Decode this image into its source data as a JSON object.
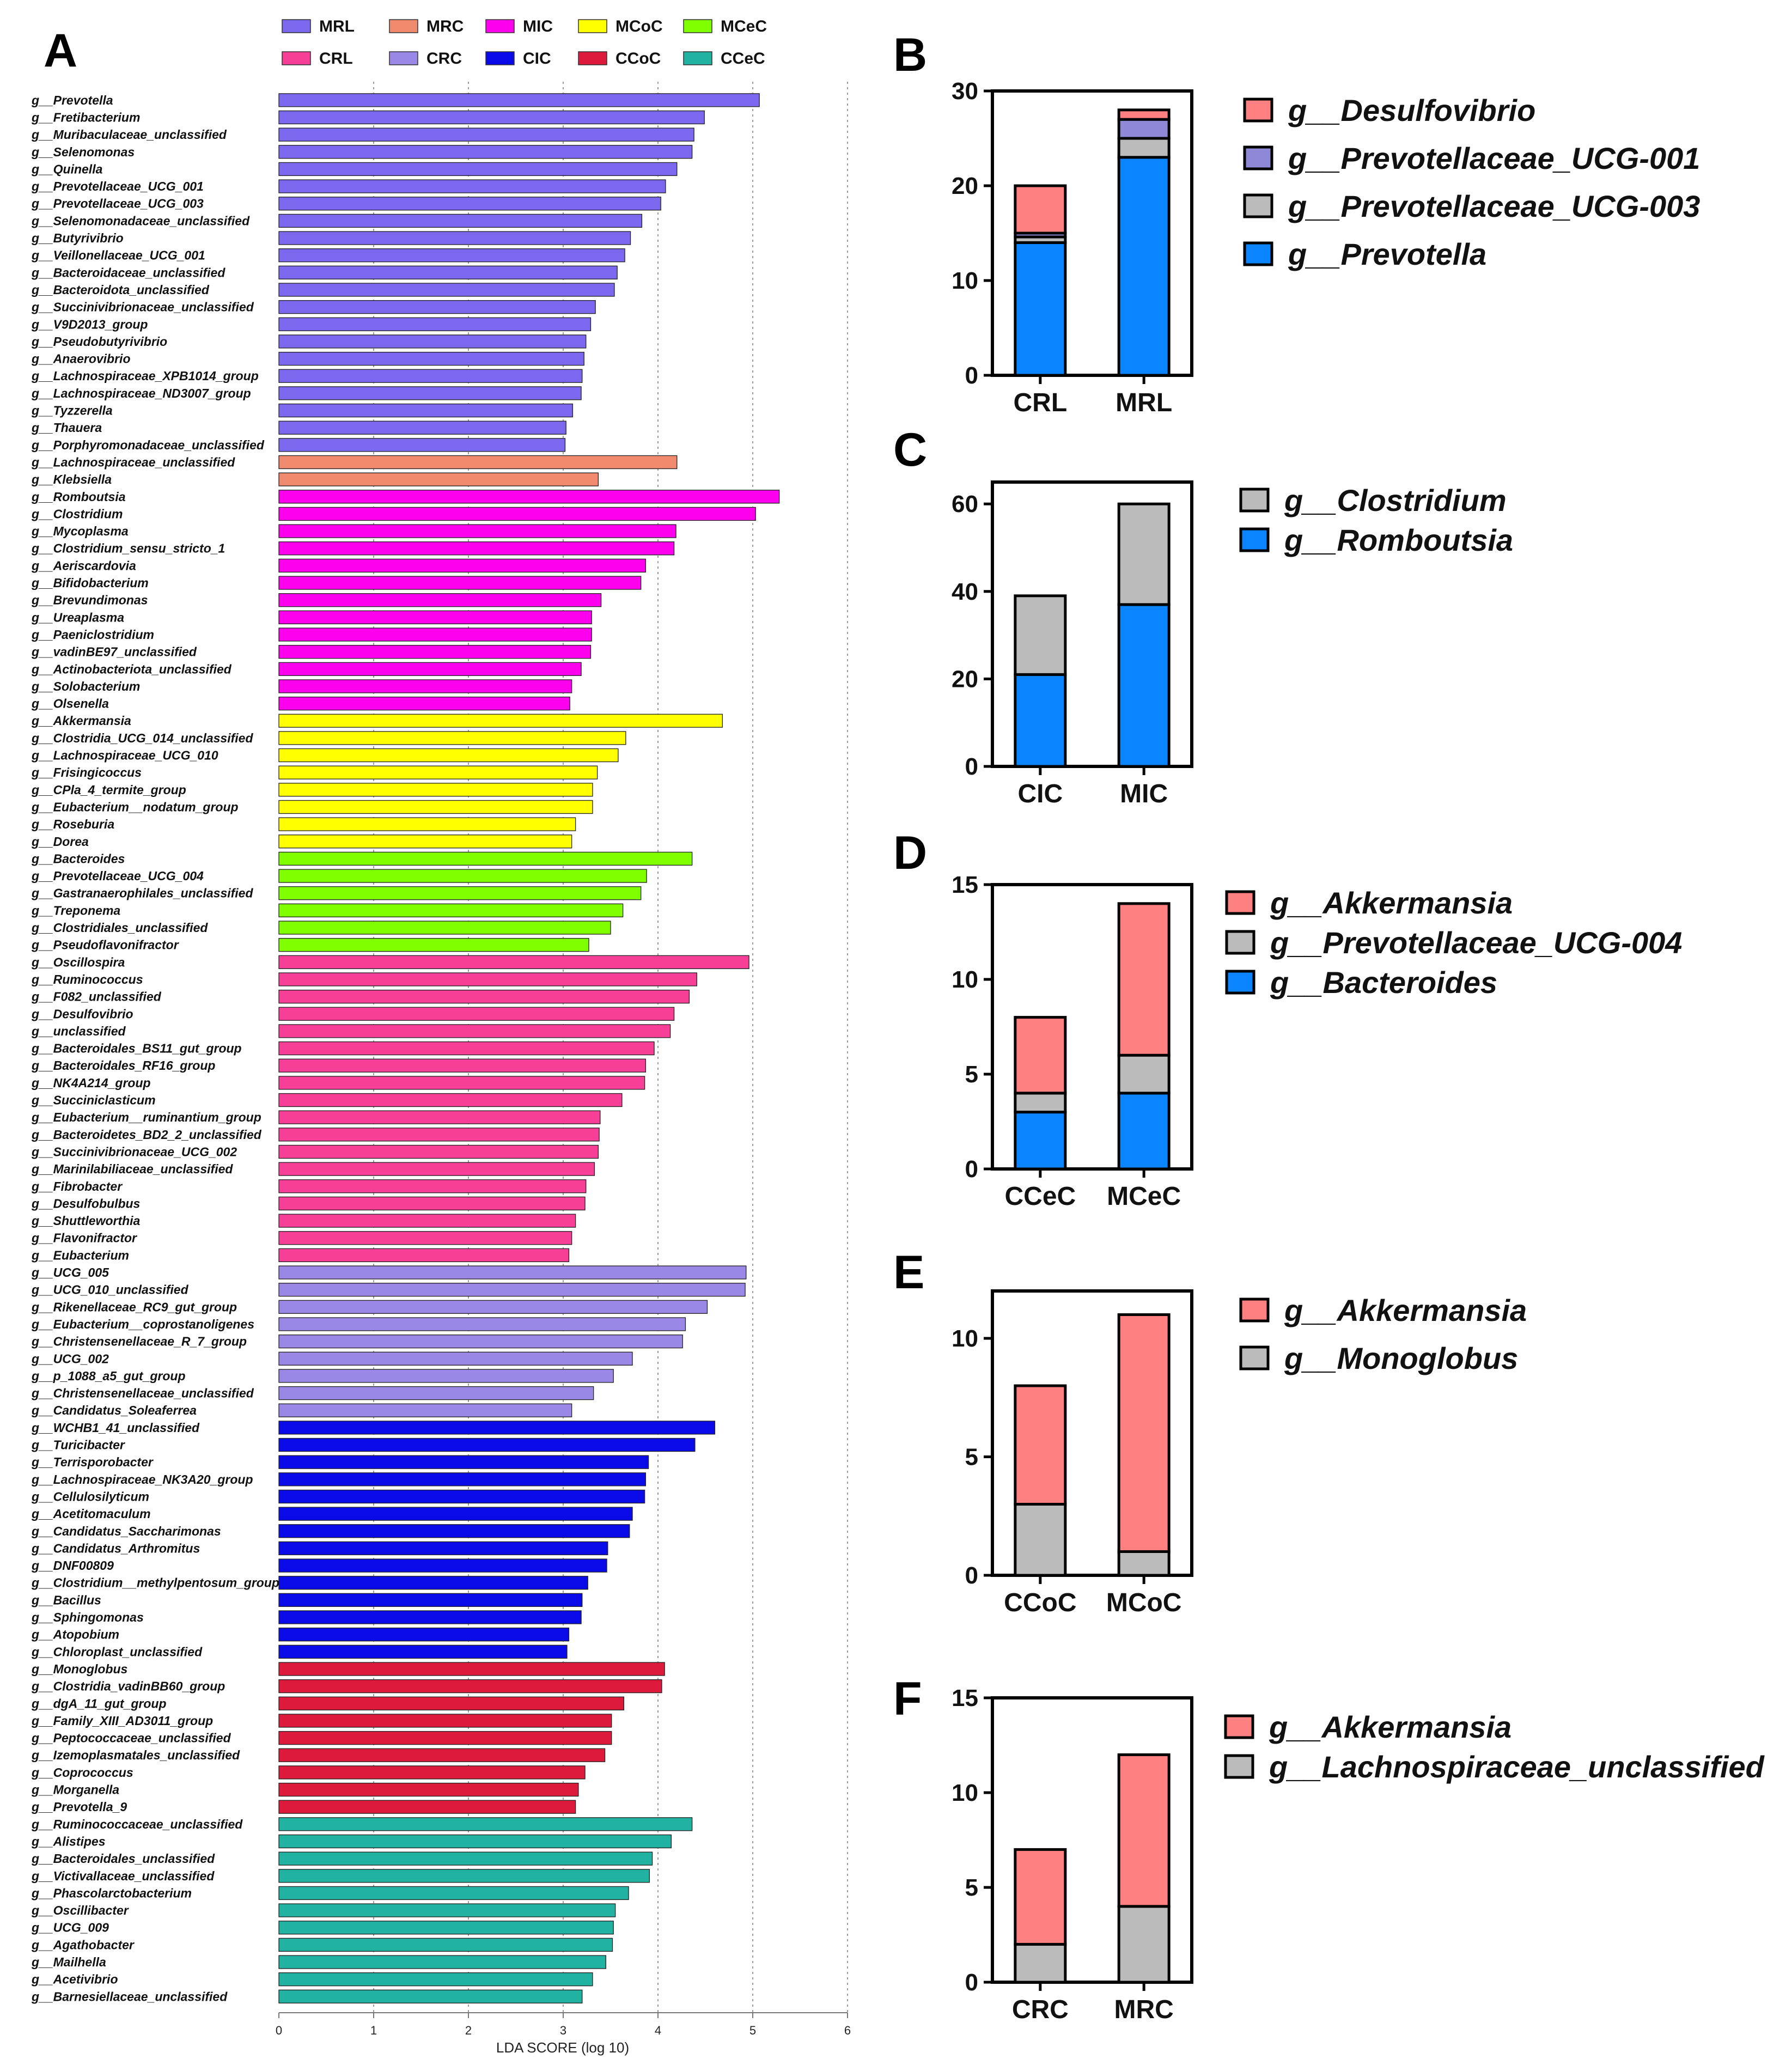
{
  "colors": {
    "MRL": "#7B68EE",
    "MRC": "#F08A6E",
    "MIC": "#FF00EE",
    "MCoC": "#FFFF00",
    "MCeC": "#7FFF00",
    "CRL": "#F83F97",
    "CRC": "#9A87E6",
    "CIC": "#0A0AE8",
    "CCoC": "#DE1A3C",
    "CCeC": "#22B2A2",
    "Prevotella": "#0A84FF",
    "Prevotellaceae_UCG-003": "#BBBBBB",
    "Prevotellaceae_UCG-001": "#8F88D6",
    "Desulfovibrio": "#FF8080",
    "Romboutsia": "#0A84FF",
    "Clostridium": "#BBBBBB",
    "Bacteroides": "#0A84FF",
    "Prevotellaceae_UCG-004": "#BBBBBB",
    "Akkermansia": "#FF8080",
    "Monoglobus": "#BBBBBB",
    "Lachnospiraceae_unclassified": "#BBBBBB"
  },
  "chart_data": [
    {
      "panel": "A",
      "type": "bar",
      "orientation": "horizontal",
      "xlabel": "LDA SCORE (log 10)",
      "xlim": [
        0,
        6
      ],
      "xticks": [
        0,
        1,
        2,
        3,
        4,
        5,
        6
      ],
      "legend": [
        "MRL",
        "MRC",
        "MIC",
        "MCoC",
        "MCeC",
        "CRL",
        "CRC",
        "CIC",
        "CCoC",
        "CCeC"
      ],
      "bars": [
        {
          "label": "g__Prevotella",
          "value": 5.07,
          "group": "MRL"
        },
        {
          "label": "g__Fretibacterium",
          "value": 4.49,
          "group": "MRL"
        },
        {
          "label": "g__Muribaculaceae_unclassified",
          "value": 4.38,
          "group": "MRL"
        },
        {
          "label": "g__Selenomonas",
          "value": 4.36,
          "group": "MRL"
        },
        {
          "label": "g__Quinella",
          "value": 4.2,
          "group": "MRL"
        },
        {
          "label": "g__Prevotellaceae_UCG_001",
          "value": 4.08,
          "group": "MRL"
        },
        {
          "label": "g__Prevotellaceae_UCG_003",
          "value": 4.03,
          "group": "MRL"
        },
        {
          "label": "g__Selenomonadaceae_unclassified",
          "value": 3.83,
          "group": "MRL"
        },
        {
          "label": "g__Butyrivibrio",
          "value": 3.71,
          "group": "MRL"
        },
        {
          "label": "g__Veillonellaceae_UCG_001",
          "value": 3.65,
          "group": "MRL"
        },
        {
          "label": "g__Bacteroidaceae_unclassified",
          "value": 3.57,
          "group": "MRL"
        },
        {
          "label": "g__Bacteroidota_unclassified",
          "value": 3.54,
          "group": "MRL"
        },
        {
          "label": "g__Succinivibrionaceae_unclassified",
          "value": 3.34,
          "group": "MRL"
        },
        {
          "label": "g__V9D2013_group",
          "value": 3.29,
          "group": "MRL"
        },
        {
          "label": "g__Pseudobutyrivibrio",
          "value": 3.24,
          "group": "MRL"
        },
        {
          "label": "g__Anaerovibrio",
          "value": 3.22,
          "group": "MRL"
        },
        {
          "label": "g__Lachnospiraceae_XPB1014_group",
          "value": 3.2,
          "group": "MRL"
        },
        {
          "label": "g__Lachnospiraceae_ND3007_group",
          "value": 3.19,
          "group": "MRL"
        },
        {
          "label": "g__Tyzzerella",
          "value": 3.1,
          "group": "MRL"
        },
        {
          "label": "g__Thauera",
          "value": 3.03,
          "group": "MRL"
        },
        {
          "label": "g__Porphyromonadaceae_unclassified",
          "value": 3.02,
          "group": "MRL"
        },
        {
          "label": "g__Lachnospiraceae_unclassified",
          "value": 4.2,
          "group": "MRC"
        },
        {
          "label": "g__Klebsiella",
          "value": 3.37,
          "group": "MRC"
        },
        {
          "label": "g__Romboutsia",
          "value": 5.28,
          "group": "MIC"
        },
        {
          "label": "g__Clostridium",
          "value": 5.03,
          "group": "MIC"
        },
        {
          "label": "g__Mycoplasma",
          "value": 4.19,
          "group": "MIC"
        },
        {
          "label": "g__Clostridium_sensu_stricto_1",
          "value": 4.17,
          "group": "MIC"
        },
        {
          "label": "g__Aeriscardovia",
          "value": 3.87,
          "group": "MIC"
        },
        {
          "label": "g__Bifidobacterium",
          "value": 3.82,
          "group": "MIC"
        },
        {
          "label": "g__Brevundimonas",
          "value": 3.4,
          "group": "MIC"
        },
        {
          "label": "g__Ureaplasma",
          "value": 3.3,
          "group": "MIC"
        },
        {
          "label": "g__Paeniclostridium",
          "value": 3.3,
          "group": "MIC"
        },
        {
          "label": "g__vadinBE97_unclassified",
          "value": 3.29,
          "group": "MIC"
        },
        {
          "label": "g__Actinobacteriota_unclassified",
          "value": 3.19,
          "group": "MIC"
        },
        {
          "label": "g__Solobacterium",
          "value": 3.09,
          "group": "MIC"
        },
        {
          "label": "g__Olsenella",
          "value": 3.07,
          "group": "MIC"
        },
        {
          "label": "g__Akkermansia",
          "value": 4.68,
          "group": "MCoC"
        },
        {
          "label": "g__Clostridia_UCG_014_unclassified",
          "value": 3.66,
          "group": "MCoC"
        },
        {
          "label": "g__Lachnospiraceae_UCG_010",
          "value": 3.58,
          "group": "MCoC"
        },
        {
          "label": "g__Frisingicoccus",
          "value": 3.36,
          "group": "MCoC"
        },
        {
          "label": "g__CPla_4_termite_group",
          "value": 3.31,
          "group": "MCoC"
        },
        {
          "label": "g__Eubacterium__nodatum_group",
          "value": 3.31,
          "group": "MCoC"
        },
        {
          "label": "g__Roseburia",
          "value": 3.13,
          "group": "MCoC"
        },
        {
          "label": "g__Dorea",
          "value": 3.09,
          "group": "MCoC"
        },
        {
          "label": "g__Bacteroides",
          "value": 4.36,
          "group": "MCeC"
        },
        {
          "label": "g__Prevotellaceae_UCG_004",
          "value": 3.88,
          "group": "MCeC"
        },
        {
          "label": "g__Gastranaerophilales_unclassified",
          "value": 3.82,
          "group": "MCeC"
        },
        {
          "label": "g__Treponema",
          "value": 3.63,
          "group": "MCeC"
        },
        {
          "label": "g__Clostridiales_unclassified",
          "value": 3.5,
          "group": "MCeC"
        },
        {
          "label": "g__Pseudoflavonifractor",
          "value": 3.27,
          "group": "MCeC"
        },
        {
          "label": "g__Oscillospira",
          "value": 4.96,
          "group": "CRL"
        },
        {
          "label": "g__Ruminococcus",
          "value": 4.41,
          "group": "CRL"
        },
        {
          "label": "g__F082_unclassified",
          "value": 4.33,
          "group": "CRL"
        },
        {
          "label": "g__Desulfovibrio",
          "value": 4.17,
          "group": "CRL"
        },
        {
          "label": "g__unclassified",
          "value": 4.13,
          "group": "CRL"
        },
        {
          "label": "g__Bacteroidales_BS11_gut_group",
          "value": 3.96,
          "group": "CRL"
        },
        {
          "label": "g__Bacteroidales_RF16_group",
          "value": 3.87,
          "group": "CRL"
        },
        {
          "label": "g__NK4A214_group",
          "value": 3.86,
          "group": "CRL"
        },
        {
          "label": "g__Succiniclasticum",
          "value": 3.62,
          "group": "CRL"
        },
        {
          "label": "g__Eubacterium__ruminantium_group",
          "value": 3.39,
          "group": "CRL"
        },
        {
          "label": "g__Bacteroidetes_BD2_2_unclassified",
          "value": 3.38,
          "group": "CRL"
        },
        {
          "label": "g__Succinivibrionaceae_UCG_002",
          "value": 3.37,
          "group": "CRL"
        },
        {
          "label": "g__Marinilabiliaceae_unclassified",
          "value": 3.33,
          "group": "CRL"
        },
        {
          "label": "g__Fibrobacter",
          "value": 3.24,
          "group": "CRL"
        },
        {
          "label": "g__Desulfobulbus",
          "value": 3.23,
          "group": "CRL"
        },
        {
          "label": "g__Shuttleworthia",
          "value": 3.13,
          "group": "CRL"
        },
        {
          "label": "g__Flavonifractor",
          "value": 3.09,
          "group": "CRL"
        },
        {
          "label": "g__Eubacterium",
          "value": 3.06,
          "group": "CRL"
        },
        {
          "label": "g__UCG_005",
          "value": 4.93,
          "group": "CRC"
        },
        {
          "label": "g__UCG_010_unclassified",
          "value": 4.92,
          "group": "CRC"
        },
        {
          "label": "g__Rikenellaceae_RC9_gut_group",
          "value": 4.52,
          "group": "CRC"
        },
        {
          "label": "g__Eubacterium__coprostanoligenes",
          "value": 4.29,
          "group": "CRC"
        },
        {
          "label": "g__Christensenellaceae_R_7_group",
          "value": 4.26,
          "group": "CRC"
        },
        {
          "label": "g__UCG_002",
          "value": 3.73,
          "group": "CRC"
        },
        {
          "label": "g__p_1088_a5_gut_group",
          "value": 3.53,
          "group": "CRC"
        },
        {
          "label": "g__Christensenellaceae_unclassified",
          "value": 3.32,
          "group": "CRC"
        },
        {
          "label": "g__Candidatus_Soleaferrea",
          "value": 3.09,
          "group": "CRC"
        },
        {
          "label": "g__WCHB1_41_unclassified",
          "value": 4.6,
          "group": "CIC"
        },
        {
          "label": "g__Turicibacter",
          "value": 4.39,
          "group": "CIC"
        },
        {
          "label": "g__Terrisporobacter",
          "value": 3.9,
          "group": "CIC"
        },
        {
          "label": "g__Lachnospiraceae_NK3A20_group",
          "value": 3.87,
          "group": "CIC"
        },
        {
          "label": "g__Cellulosilyticum",
          "value": 3.86,
          "group": "CIC"
        },
        {
          "label": "g__Acetitomaculum",
          "value": 3.73,
          "group": "CIC"
        },
        {
          "label": "g__Candidatus_Saccharimonas",
          "value": 3.7,
          "group": "CIC"
        },
        {
          "label": "g__Candidatus_Arthromitus",
          "value": 3.47,
          "group": "CIC"
        },
        {
          "label": "g__DNF00809",
          "value": 3.46,
          "group": "CIC"
        },
        {
          "label": "g__Clostridium__methylpentosum_group",
          "value": 3.26,
          "group": "CIC"
        },
        {
          "label": "g__Bacillus",
          "value": 3.2,
          "group": "CIC"
        },
        {
          "label": "g__Sphingomonas",
          "value": 3.19,
          "group": "CIC"
        },
        {
          "label": "g__Atopobium",
          "value": 3.06,
          "group": "CIC"
        },
        {
          "label": "g__Chloroplast_unclassified",
          "value": 3.04,
          "group": "CIC"
        },
        {
          "label": "g__Monoglobus",
          "value": 4.07,
          "group": "CCoC"
        },
        {
          "label": "g__Clostridia_vadinBB60_group",
          "value": 4.04,
          "group": "CCoC"
        },
        {
          "label": "g__dgA_11_gut_group",
          "value": 3.64,
          "group": "CCoC"
        },
        {
          "label": "g__Family_XIII_AD3011_group",
          "value": 3.51,
          "group": "CCoC"
        },
        {
          "label": "g__Peptococcaceae_unclassified",
          "value": 3.51,
          "group": "CCoC"
        },
        {
          "label": "g__Izemoplasmatales_unclassified",
          "value": 3.44,
          "group": "CCoC"
        },
        {
          "label": "g__Coprococcus",
          "value": 3.23,
          "group": "CCoC"
        },
        {
          "label": "g__Morganella",
          "value": 3.16,
          "group": "CCoC"
        },
        {
          "label": "g__Prevotella_9",
          "value": 3.13,
          "group": "CCoC"
        },
        {
          "label": "g__Ruminococcaceae_unclassified",
          "value": 4.36,
          "group": "CCeC"
        },
        {
          "label": "g__Alistipes",
          "value": 4.14,
          "group": "CCeC"
        },
        {
          "label": "g__Bacteroidales_unclassified",
          "value": 3.94,
          "group": "CCeC"
        },
        {
          "label": "g__Victivallaceae_unclassified",
          "value": 3.91,
          "group": "CCeC"
        },
        {
          "label": "g__Phascolarctobacterium",
          "value": 3.69,
          "group": "CCeC"
        },
        {
          "label": "g__Oscillibacter",
          "value": 3.55,
          "group": "CCeC"
        },
        {
          "label": "g__UCG_009",
          "value": 3.53,
          "group": "CCeC"
        },
        {
          "label": "g__Agathobacter",
          "value": 3.52,
          "group": "CCeC"
        },
        {
          "label": "g__Mailhella",
          "value": 3.45,
          "group": "CCeC"
        },
        {
          "label": "g__Acetivibrio",
          "value": 3.31,
          "group": "CCeC"
        },
        {
          "label": "g__Barnesiellaceae_unclassified",
          "value": 3.2,
          "group": "CCeC"
        }
      ]
    },
    {
      "panel": "B",
      "type": "bar",
      "stacked": true,
      "categories": [
        "CRL",
        "MRL"
      ],
      "ylim": [
        0,
        30
      ],
      "yticks": [
        0,
        10,
        20,
        30
      ],
      "legend_labels": [
        "g__Desulfovibrio",
        "g__Prevotellaceae_UCG-001",
        "g__Prevotellaceae_UCG-003",
        "g__Prevotella"
      ],
      "series": [
        {
          "name": "g__Prevotella",
          "key": "Prevotella",
          "values": [
            14,
            23
          ]
        },
        {
          "name": "g__Prevotellaceae_UCG-003",
          "key": "Prevotellaceae_UCG-003",
          "values": [
            0.6,
            2
          ]
        },
        {
          "name": "g__Prevotellaceae_UCG-001",
          "key": "Prevotellaceae_UCG-001",
          "values": [
            0.4,
            2
          ]
        },
        {
          "name": "g__Desulfovibrio",
          "key": "Desulfovibrio",
          "values": [
            5,
            1
          ]
        }
      ]
    },
    {
      "panel": "C",
      "type": "bar",
      "stacked": true,
      "categories": [
        "CIC",
        "MIC"
      ],
      "ylim": [
        0,
        65
      ],
      "yticks": [
        0,
        20,
        40,
        60
      ],
      "legend_labels": [
        "g__Clostridium",
        "g__Romboutsia"
      ],
      "series": [
        {
          "name": "g__Romboutsia",
          "key": "Romboutsia",
          "values": [
            21,
            37
          ]
        },
        {
          "name": "g__Clostridium",
          "key": "Clostridium",
          "values": [
            18,
            23
          ]
        }
      ]
    },
    {
      "panel": "D",
      "type": "bar",
      "stacked": true,
      "categories": [
        "CCeC",
        "MCeC"
      ],
      "ylim": [
        0,
        15
      ],
      "yticks": [
        0,
        5,
        10,
        15
      ],
      "legend_labels": [
        "g__Akkermansia",
        "g__Prevotellaceae_UCG-004",
        "g__Bacteroides"
      ],
      "series": [
        {
          "name": "g__Bacteroides",
          "key": "Bacteroides",
          "values": [
            3,
            4
          ]
        },
        {
          "name": "g__Prevotellaceae_UCG-004",
          "key": "Prevotellaceae_UCG-004",
          "values": [
            1,
            2
          ]
        },
        {
          "name": "g__Akkermansia",
          "key": "Akkermansia",
          "values": [
            4,
            8
          ]
        }
      ]
    },
    {
      "panel": "E",
      "type": "bar",
      "stacked": true,
      "categories": [
        "CCoC",
        "MCoC"
      ],
      "ylim": [
        0,
        12
      ],
      "yticks": [
        0,
        5,
        10
      ],
      "legend_labels": [
        "g__Akkermansia",
        "g__Monoglobus"
      ],
      "series": [
        {
          "name": "g__Monoglobus",
          "key": "Monoglobus",
          "values": [
            3,
            1
          ]
        },
        {
          "name": "g__Akkermansia",
          "key": "Akkermansia",
          "values": [
            5,
            10
          ]
        }
      ]
    },
    {
      "panel": "F",
      "type": "bar",
      "stacked": true,
      "categories": [
        "CRC",
        "MRC"
      ],
      "ylim": [
        0,
        15
      ],
      "yticks": [
        0,
        5,
        10,
        15
      ],
      "legend_labels": [
        "g__Akkermansia",
        "g__Lachnospiraceae_unclassified"
      ],
      "series": [
        {
          "name": "g__Lachnospiraceae_unclassified",
          "key": "Lachnospiraceae_unclassified",
          "values": [
            2,
            4
          ]
        },
        {
          "name": "g__Akkermansia",
          "key": "Akkermansia",
          "values": [
            5,
            8
          ]
        }
      ]
    }
  ]
}
